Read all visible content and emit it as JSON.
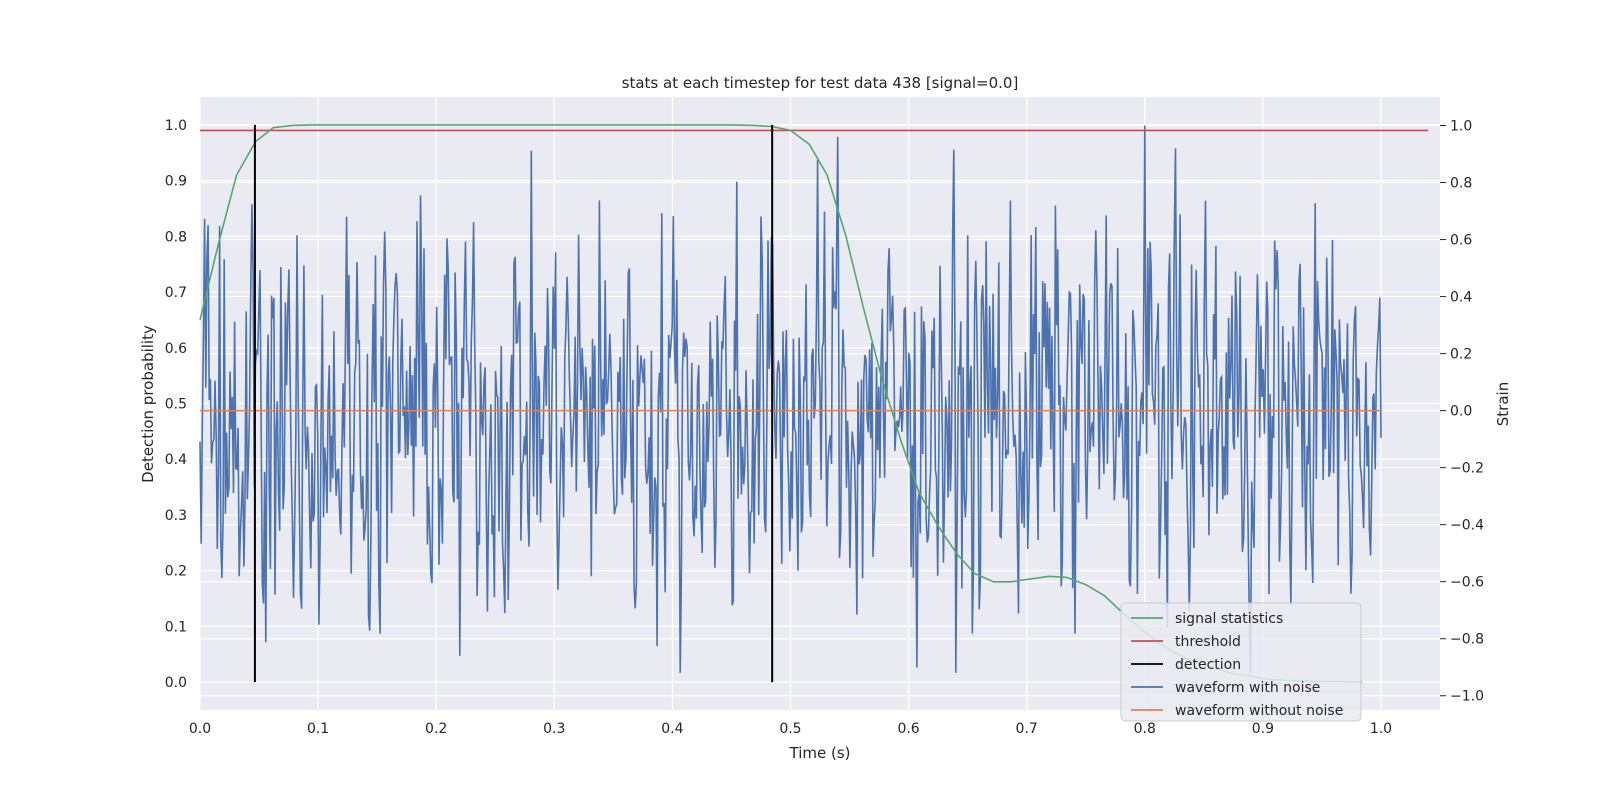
{
  "chart_data": {
    "type": "line",
    "title": "stats at each timestep for test data 438 [signal=0.0]",
    "xlabel": "Time (s)",
    "ylabel_left": "Detection probability",
    "ylabel_right": "Strain",
    "xlim": [
      0.0,
      1.05
    ],
    "ylim_left": [
      -0.05,
      1.05
    ],
    "ylim_right": [
      -1.05,
      1.1
    ],
    "x_ticks": [
      0.0,
      0.1,
      0.2,
      0.3,
      0.4,
      0.5,
      0.6,
      0.7,
      0.8,
      0.9,
      1.0
    ],
    "y_left_ticks": [
      0.0,
      0.1,
      0.2,
      0.3,
      0.4,
      0.5,
      0.6,
      0.7,
      0.8,
      0.9,
      1.0
    ],
    "y_right_ticks": [
      -1.0,
      -0.8,
      -0.6,
      -0.4,
      -0.2,
      0.0,
      0.2,
      0.4,
      0.6,
      0.8,
      1.0
    ],
    "grid": true,
    "legend_position": "bottom-right",
    "series": [
      {
        "name": "signal statistics",
        "axis": "left",
        "color": "#55a868",
        "x": [
          0.0,
          0.016,
          0.031,
          0.047,
          0.062,
          0.078,
          0.094,
          0.109,
          0.125,
          0.2,
          0.3,
          0.4,
          0.45,
          0.469,
          0.484,
          0.5,
          0.516,
          0.531,
          0.547,
          0.562,
          0.578,
          0.594,
          0.609,
          0.625,
          0.641,
          0.656,
          0.672,
          0.687,
          0.703,
          0.719,
          0.734,
          0.75,
          0.766,
          0.781,
          0.797,
          0.812,
          0.828,
          0.844,
          0.859,
          0.875,
          0.891,
          0.906,
          0.922,
          0.937,
          0.953,
          0.969,
          0.984
        ],
        "y": [
          0.65,
          0.79,
          0.91,
          0.97,
          0.995,
          0.999,
          1.0,
          1.0,
          1.0,
          1.0,
          1.0,
          1.0,
          1.0,
          0.999,
          0.997,
          0.99,
          0.965,
          0.91,
          0.8,
          0.67,
          0.54,
          0.43,
          0.34,
          0.28,
          0.23,
          0.195,
          0.18,
          0.18,
          0.185,
          0.19,
          0.188,
          0.175,
          0.155,
          0.125,
          0.095,
          0.07,
          0.05,
          0.035,
          0.025,
          0.015,
          0.01,
          0.005,
          0.003,
          0.002,
          0.001,
          0.001,
          0.0
        ]
      },
      {
        "name": "threshold",
        "axis": "left",
        "color": "#c44e52",
        "x": [
          0.0,
          1.04
        ],
        "y": [
          0.99,
          0.99
        ]
      },
      {
        "name": "detection",
        "axis": "left",
        "color": "#000000",
        "x": [
          0.0465,
          0.4845
        ],
        "y_range": [
          0.0,
          1.0
        ]
      },
      {
        "name": "waveform with noise",
        "axis": "right",
        "color": "#4c72b0",
        "x_range": [
          0.0,
          1.0
        ],
        "n_points": 1024,
        "amplitude_range": [
          -1.0,
          1.0
        ],
        "notable_points": [
          {
            "x": 0.8,
            "y": 1.0
          },
          {
            "x": 0.64,
            "y": -0.92
          },
          {
            "x": 0.22,
            "y": -0.86
          },
          {
            "x": 0.54,
            "y": 0.96
          }
        ]
      },
      {
        "name": "waveform without noise",
        "axis": "right",
        "color": "#dd8452",
        "x": [
          0.0,
          1.0
        ],
        "y": [
          0.0,
          0.0
        ]
      }
    ]
  }
}
